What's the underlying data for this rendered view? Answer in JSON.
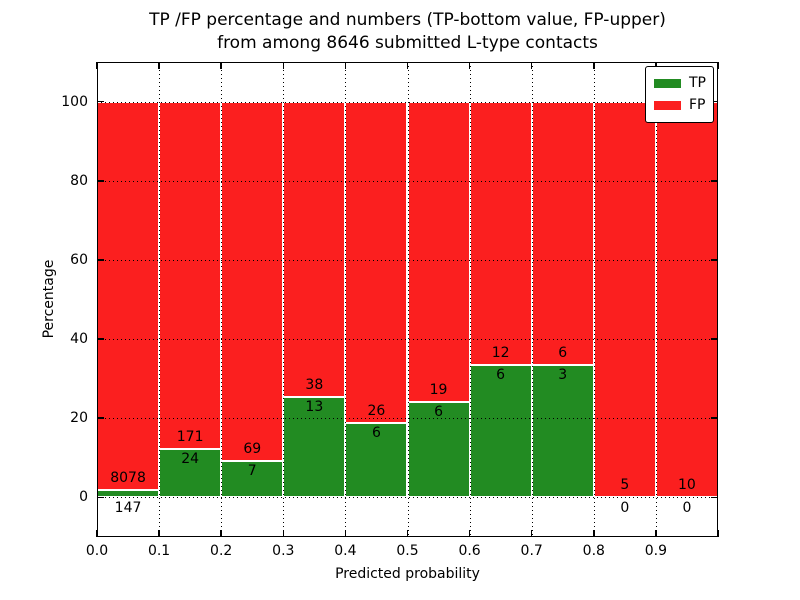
{
  "chart_data": {
    "type": "bar",
    "stacked": true,
    "title_line1": "TP /FP percentage and numbers (TP-bottom value, FP-upper)",
    "title_line2": "from among 8646 submitted L-type contacts",
    "total_submitted": 8646,
    "xlabel": "Predicted probability",
    "ylabel": "Percentage",
    "xlim": [
      0.0,
      1.0
    ],
    "ylim": [
      -10,
      110
    ],
    "bin_width": 0.1,
    "xticks": [
      {
        "value": 0.0,
        "label": "0.0"
      },
      {
        "value": 0.1,
        "label": "0.1"
      },
      {
        "value": 0.2,
        "label": "0.2"
      },
      {
        "value": 0.3,
        "label": "0.3"
      },
      {
        "value": 0.4,
        "label": "0.4"
      },
      {
        "value": 0.5,
        "label": "0.5"
      },
      {
        "value": 0.6,
        "label": "0.6"
      },
      {
        "value": 0.7,
        "label": "0.7"
      },
      {
        "value": 0.8,
        "label": "0.8"
      },
      {
        "value": 0.9,
        "label": "0.9"
      }
    ],
    "yticks": [
      {
        "value": 0,
        "label": "0"
      },
      {
        "value": 20,
        "label": "20"
      },
      {
        "value": 40,
        "label": "40"
      },
      {
        "value": 60,
        "label": "60"
      },
      {
        "value": 80,
        "label": "80"
      },
      {
        "value": 100,
        "label": "100"
      }
    ],
    "grid": true,
    "grid_style": "dotted",
    "legend_position": "upper right",
    "series": [
      {
        "name": "TP",
        "color": "#228b22",
        "counts": [
          147,
          24,
          7,
          13,
          6,
          6,
          6,
          3,
          0,
          0
        ]
      },
      {
        "name": "FP",
        "color": "#fb1f1f",
        "counts": [
          8078,
          171,
          69,
          38,
          26,
          19,
          12,
          6,
          5,
          10
        ]
      }
    ],
    "tp_percent_of_bin": [
      1.79,
      12.31,
      9.21,
      25.49,
      18.75,
      24.0,
      33.33,
      33.33,
      0.0,
      0.0
    ],
    "bars_total_height_percent": 100
  }
}
